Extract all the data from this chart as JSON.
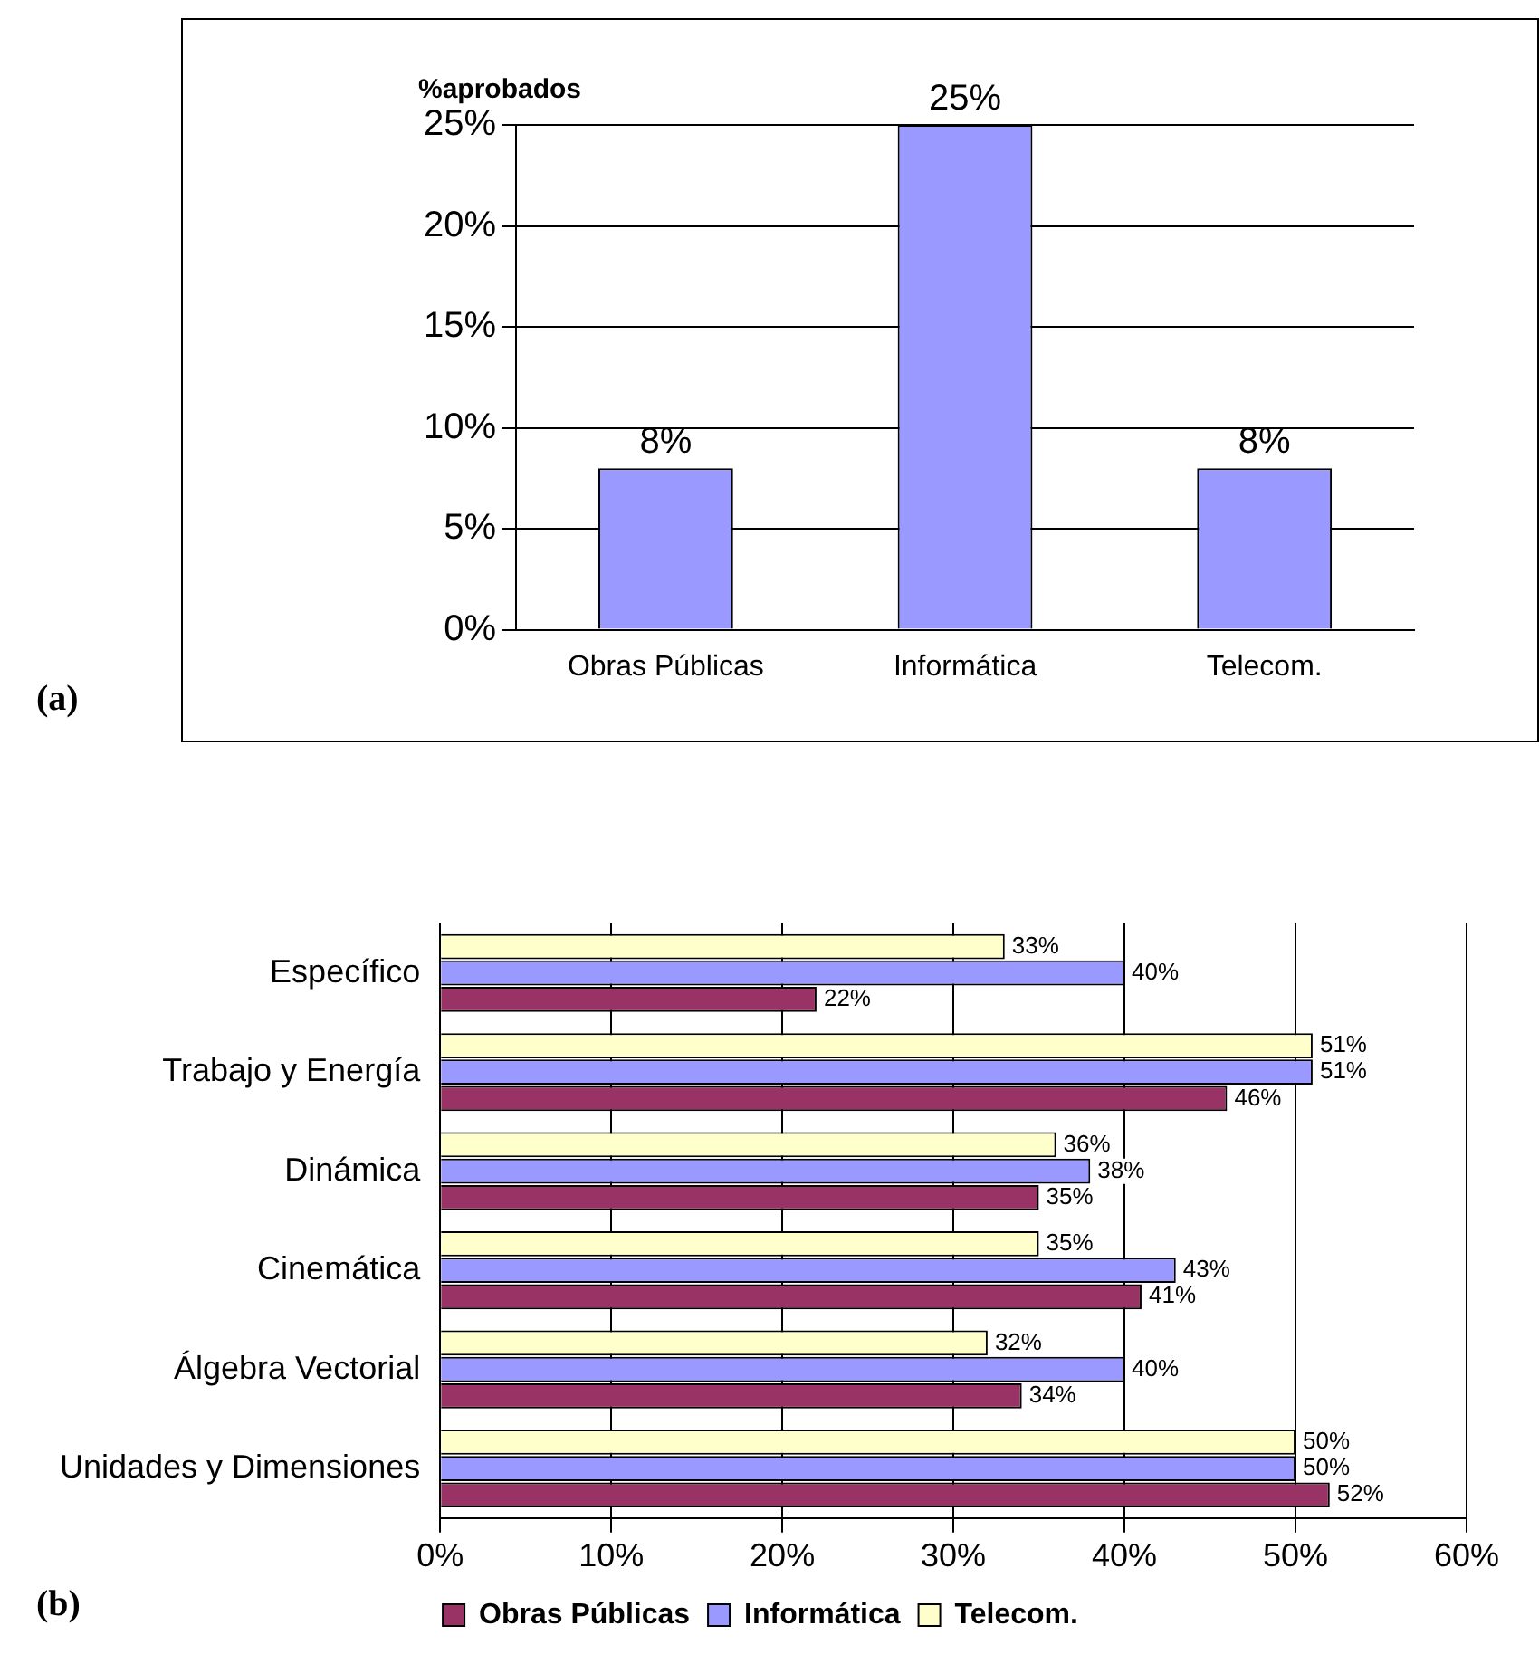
{
  "chart_data": [
    {
      "type": "bar",
      "title": "%aprobados",
      "categories": [
        "Obras Públicas",
        "Informática",
        "Telecom."
      ],
      "values": [
        8,
        25,
        8
      ],
      "value_labels": [
        "8%",
        "25%",
        "8%"
      ],
      "color": "#9999ff",
      "ylim": [
        0,
        25
      ],
      "yticks": [
        {
          "value": 0,
          "label": "0%"
        },
        {
          "value": 5,
          "label": "5%"
        },
        {
          "value": 10,
          "label": "10%"
        },
        {
          "value": 15,
          "label": "15%"
        },
        {
          "value": 20,
          "label": "20%"
        },
        {
          "value": 25,
          "label": "25%"
        }
      ],
      "grid": "y",
      "annotations": [
        "(a)"
      ]
    },
    {
      "type": "bar",
      "orientation": "horizontal",
      "categories": [
        "Específico",
        "Trabajo y Energía",
        "Dinámica",
        "Cinemática",
        "Álgebra Vectorial",
        "Unidades y Dimensiones"
      ],
      "series": [
        {
          "name": "Obras Públicas",
          "color": "#993366",
          "values": [
            22,
            46,
            35,
            41,
            34,
            52
          ],
          "value_labels": [
            "22%",
            "46%",
            "35%",
            "41%",
            "34%",
            "52%"
          ]
        },
        {
          "name": "Informática",
          "color": "#9999ff",
          "values": [
            40,
            51,
            38,
            43,
            40,
            50
          ],
          "value_labels": [
            "40%",
            "51%",
            "38%",
            "43%",
            "40%",
            "50%"
          ]
        },
        {
          "name": "Telecom.",
          "color": "#ffffcc",
          "values": [
            33,
            51,
            36,
            35,
            32,
            50
          ],
          "value_labels": [
            "33%",
            "51%",
            "36%",
            "35%",
            "32%",
            "50%"
          ]
        }
      ],
      "xlim": [
        0,
        60
      ],
      "xticks": [
        {
          "value": 0,
          "label": "0%"
        },
        {
          "value": 10,
          "label": "10%"
        },
        {
          "value": 20,
          "label": "20%"
        },
        {
          "value": 30,
          "label": "30%"
        },
        {
          "value": 40,
          "label": "40%"
        },
        {
          "value": 50,
          "label": "50%"
        },
        {
          "value": 60,
          "label": "60%"
        }
      ],
      "grid": "x",
      "legend": "bottom",
      "annotations": [
        "(b)"
      ]
    }
  ]
}
